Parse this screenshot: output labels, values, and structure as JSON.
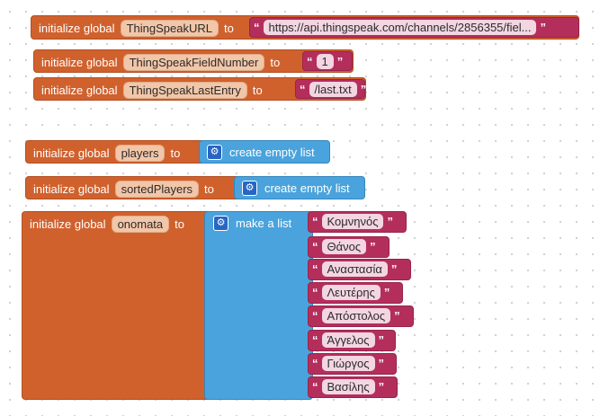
{
  "blocks": {
    "init_label": "initialize global",
    "to_label": "to",
    "quote": "“",
    "quote_close": "”",
    "url": {
      "name": "ThingSpeakURL",
      "value": "https://api.thingspeak.com/channels/2856355/fiel..."
    },
    "field_number": {
      "name": "ThingSpeakFieldNumber",
      "value": "1"
    },
    "last_entry": {
      "name": "ThingSpeakLastEntry",
      "value": "/last.txt"
    },
    "players": {
      "name": "players",
      "call": "create empty list"
    },
    "sorted_players": {
      "name": "sortedPlayers",
      "call": "create empty list"
    },
    "onomata": {
      "name": "onomata",
      "call": "make a list",
      "items": [
        "Κομνηνός",
        "Θάνος",
        "Αναστασία",
        "Λευτέρης",
        "Απόστολος",
        "Άγγελος",
        "Γιώργος",
        "Βασίλης"
      ]
    }
  },
  "colors": {
    "variable_block": "#d0612d",
    "list_block": "#4aa3dc",
    "text_block": "#b42e5c",
    "gear_icon": "#2766c4"
  },
  "icons": {
    "mutator": "gear-icon"
  }
}
